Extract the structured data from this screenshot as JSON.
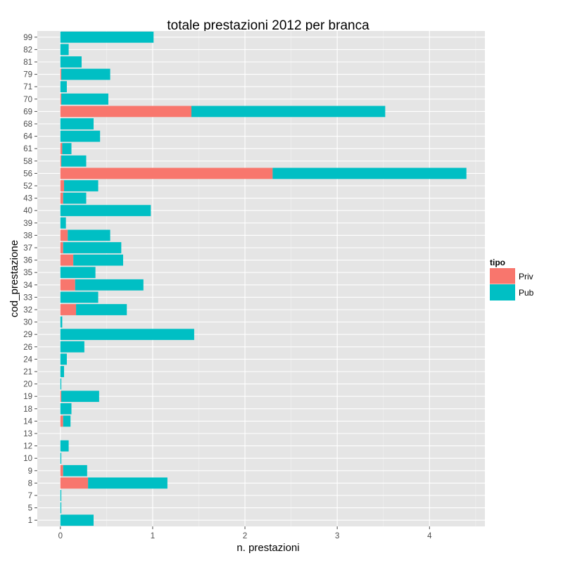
{
  "chart_data": {
    "type": "bar",
    "orientation": "horizontal",
    "stacked": true,
    "title": "totale prestazioni 2012 per branca",
    "xlabel": "n. prestazioni",
    "ylabel": "cod_prestazione",
    "xlim": [
      -0.25,
      4.6
    ],
    "xticks": [
      0,
      1,
      2,
      3,
      4
    ],
    "grid": true,
    "legend": {
      "title": "tipo",
      "position": "right"
    },
    "categories": [
      "1",
      "5",
      "7",
      "8",
      "9",
      "10",
      "12",
      "13",
      "14",
      "18",
      "19",
      "20",
      "21",
      "24",
      "26",
      "29",
      "30",
      "32",
      "33",
      "34",
      "35",
      "36",
      "37",
      "38",
      "39",
      "40",
      "43",
      "52",
      "56",
      "58",
      "61",
      "64",
      "68",
      "69",
      "70",
      "71",
      "79",
      "81",
      "82",
      "99"
    ],
    "series": [
      {
        "name": "Priv",
        "color": "#F8766D",
        "values": [
          0,
          0,
          0,
          0.3,
          0.03,
          0,
          0,
          0,
          0.03,
          0,
          0.01,
          0,
          0,
          0,
          0,
          0,
          0,
          0.17,
          0,
          0.16,
          0,
          0.14,
          0.03,
          0.08,
          0,
          0,
          0.03,
          0.04,
          2.3,
          0.01,
          0.02,
          0,
          0,
          1.42,
          0.01,
          0,
          0.01,
          0,
          0,
          0
        ]
      },
      {
        "name": "Pub",
        "color": "#00BFC4",
        "values": [
          0.36,
          0.01,
          0.01,
          0.86,
          0.26,
          0.01,
          0.09,
          0,
          0.08,
          0.12,
          0.41,
          0.01,
          0.04,
          0.07,
          0.26,
          1.45,
          0.02,
          0.55,
          0.41,
          0.74,
          0.38,
          0.54,
          0.63,
          0.46,
          0.06,
          0.98,
          0.25,
          0.37,
          2.1,
          0.27,
          0.1,
          0.43,
          0.36,
          2.1,
          0.51,
          0.07,
          0.53,
          0.23,
          0.09,
          1.01
        ]
      }
    ]
  }
}
